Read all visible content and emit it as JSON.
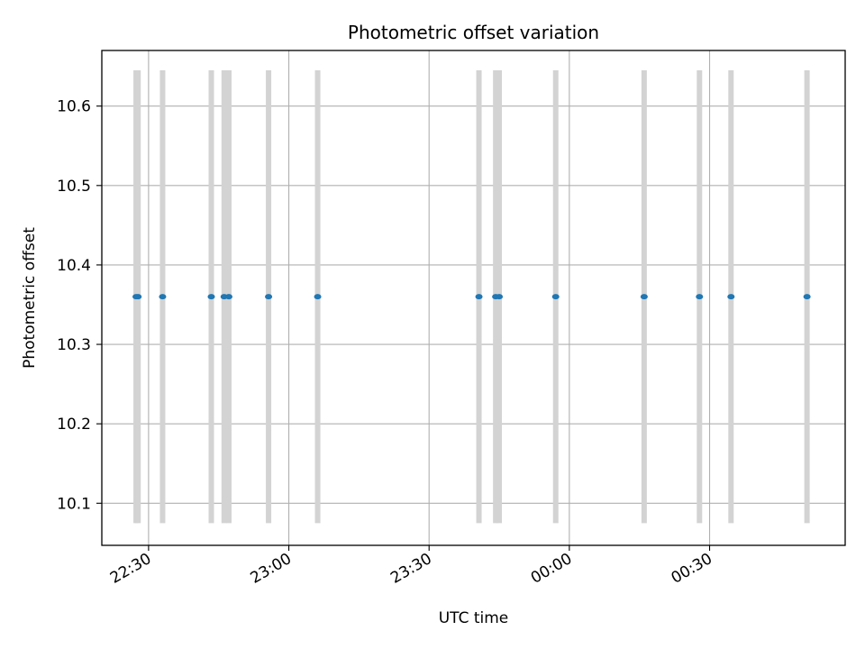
{
  "chart_data": {
    "type": "scatter",
    "title": "Photometric offset variation",
    "xlabel": "UTC time",
    "ylabel": "Photometric offset",
    "x_ticks": [
      "22:30",
      "23:00",
      "23:30",
      "00:00",
      "00:30"
    ],
    "x_tick_values": [
      "22:30",
      "23:00",
      "23:30",
      "00:00",
      "00:30"
    ],
    "y_ticks": [
      10.1,
      10.2,
      10.3,
      10.4,
      10.5,
      10.6
    ],
    "xlim": [
      "22:20",
      "00:59"
    ],
    "ylim": [
      10.047,
      10.67
    ],
    "grid": true,
    "error_bar_color": "#d3d3d3",
    "marker_color": "#1f77b4",
    "points": [
      {
        "x": "22:27:20",
        "y": 10.36,
        "y_low": 10.075,
        "y_high": 10.645
      },
      {
        "x": "22:27:45",
        "y": 10.36,
        "y_low": 10.075,
        "y_high": 10.645
      },
      {
        "x": "22:33:00",
        "y": 10.36,
        "y_low": 10.075,
        "y_high": 10.645
      },
      {
        "x": "22:43:25",
        "y": 10.36,
        "y_low": 10.075,
        "y_high": 10.645
      },
      {
        "x": "22:46:10",
        "y": 10.36,
        "y_low": 10.075,
        "y_high": 10.645
      },
      {
        "x": "22:47:10",
        "y": 10.36,
        "y_low": 10.075,
        "y_high": 10.645
      },
      {
        "x": "22:55:40",
        "y": 10.36,
        "y_low": 10.075,
        "y_high": 10.645
      },
      {
        "x": "23:06:10",
        "y": 10.36,
        "y_low": 10.075,
        "y_high": 10.645
      },
      {
        "x": "23:40:40",
        "y": 10.36,
        "y_low": 10.075,
        "y_high": 10.645
      },
      {
        "x": "23:44:15",
        "y": 10.36,
        "y_low": 10.075,
        "y_high": 10.645
      },
      {
        "x": "23:45:00",
        "y": 10.36,
        "y_low": 10.075,
        "y_high": 10.645
      },
      {
        "x": "23:57:05",
        "y": 10.36,
        "y_low": 10.075,
        "y_high": 10.645
      },
      {
        "x": "00:16:00",
        "y": 10.36,
        "y_low": 10.075,
        "y_high": 10.645
      },
      {
        "x": "00:27:50",
        "y": 10.36,
        "y_low": 10.075,
        "y_high": 10.645
      },
      {
        "x": "00:34:35",
        "y": 10.36,
        "y_low": 10.075,
        "y_high": 10.645
      },
      {
        "x": "00:50:50",
        "y": 10.36,
        "y_low": 10.075,
        "y_high": 10.645
      }
    ]
  }
}
